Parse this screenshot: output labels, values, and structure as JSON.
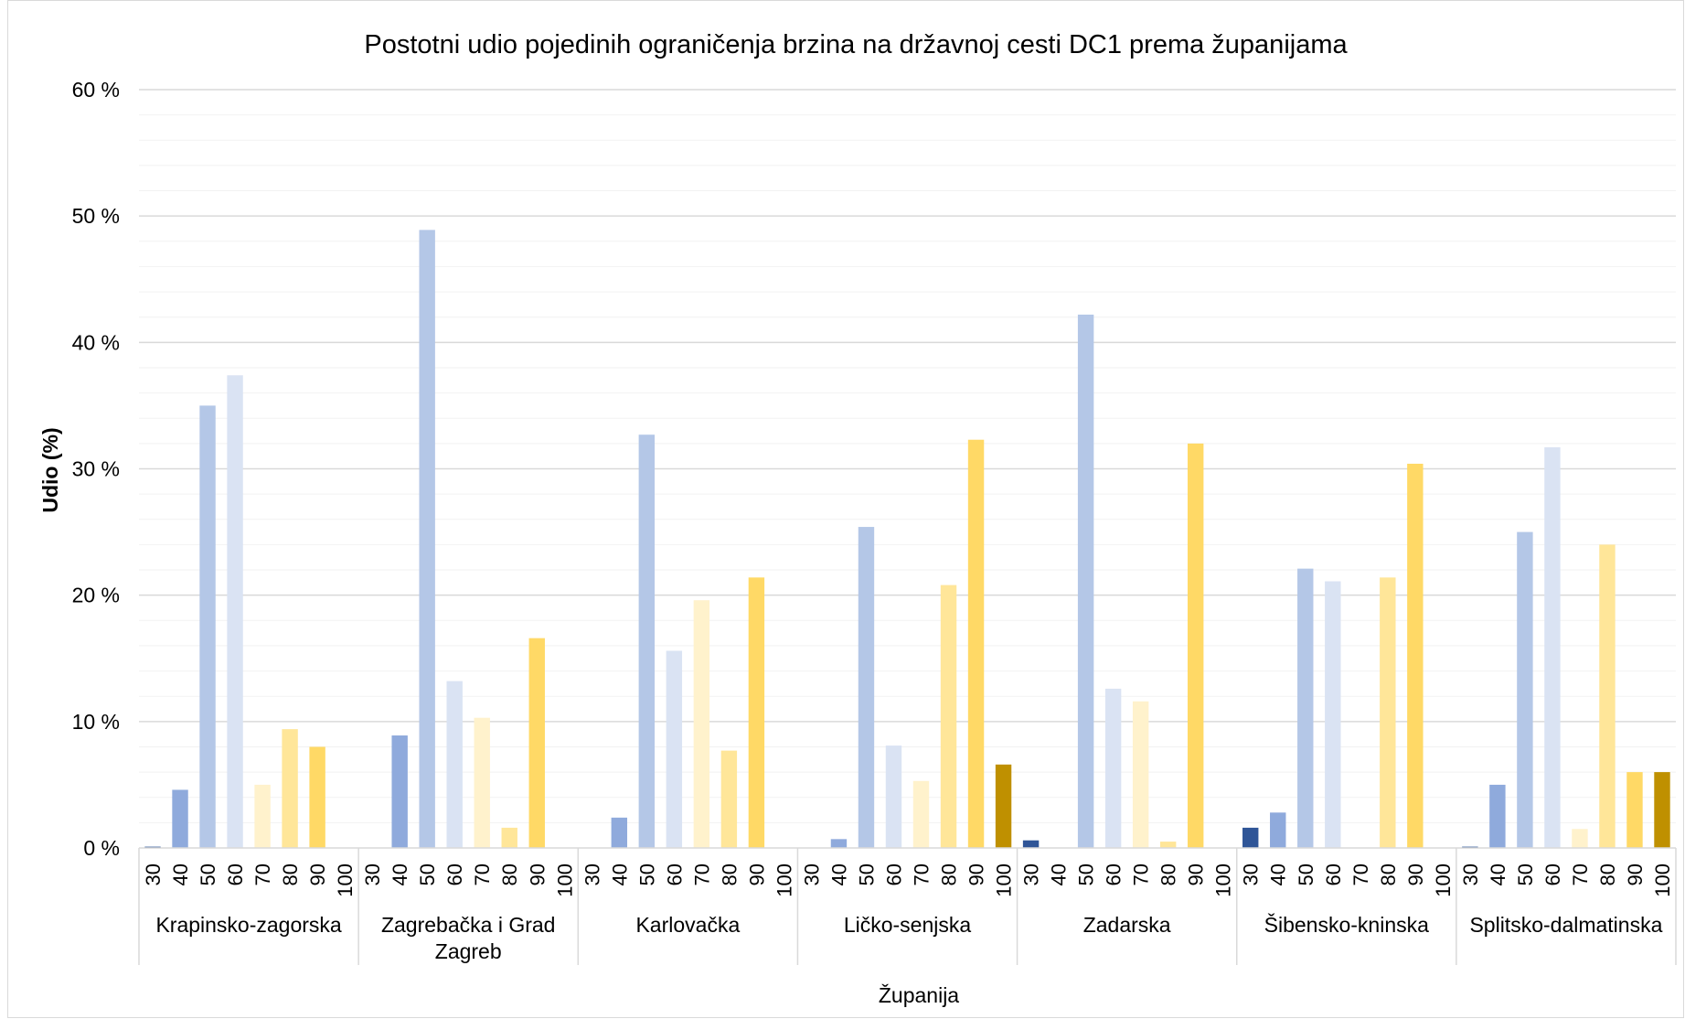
{
  "chart_data": {
    "type": "bar",
    "title": "Postotni udio pojedinih ograničenja brzina na državnoj cesti DC1 prema županijama",
    "xlabel": "Županija",
    "ylabel": "Udio (%)",
    "ylim": [
      0,
      60
    ],
    "y_major_ticks": [
      0,
      10,
      20,
      30,
      40,
      50,
      60
    ],
    "y_tick_labels": [
      "0 %",
      "10 %",
      "20 %",
      "30 %",
      "40 %",
      "50 %",
      "60 %"
    ],
    "y_minor_step": 2,
    "grid": true,
    "legend": "none",
    "speed_limits": [
      "30",
      "40",
      "50",
      "60",
      "70",
      "80",
      "90",
      "100"
    ],
    "colors": {
      "30": "#2f5597",
      "40": "#8faadc",
      "50": "#b4c7e7",
      "60": "#dae3f3",
      "70": "#fff2cc",
      "80": "#ffe699",
      "90": "#ffd966",
      "100": "#bf9000"
    },
    "groups": [
      {
        "name": "Krapinsko-zagorska",
        "values": [
          0.1,
          4.6,
          35.0,
          37.4,
          5.0,
          9.4,
          8.0,
          0
        ]
      },
      {
        "name": "Zagrebačka i Grad Zagreb",
        "values": [
          0,
          8.9,
          48.9,
          13.2,
          10.3,
          1.6,
          16.6,
          0
        ]
      },
      {
        "name": "Karlovačka",
        "values": [
          0,
          2.4,
          32.7,
          15.6,
          19.6,
          7.7,
          21.4,
          0
        ]
      },
      {
        "name": "Ličko-senjska",
        "values": [
          0,
          0.7,
          25.4,
          8.1,
          5.3,
          20.8,
          32.3,
          6.6
        ]
      },
      {
        "name": "Zadarska",
        "values": [
          0.6,
          0,
          42.2,
          12.6,
          11.6,
          0.5,
          32.0,
          0
        ]
      },
      {
        "name": "Šibensko-kninska",
        "values": [
          1.6,
          2.8,
          22.1,
          21.1,
          0,
          21.4,
          30.4,
          0
        ]
      },
      {
        "name": "Splitsko-dalmatinska",
        "values": [
          0.1,
          5.0,
          25.0,
          31.7,
          1.5,
          24.0,
          6.0,
          6.0
        ]
      }
    ]
  }
}
